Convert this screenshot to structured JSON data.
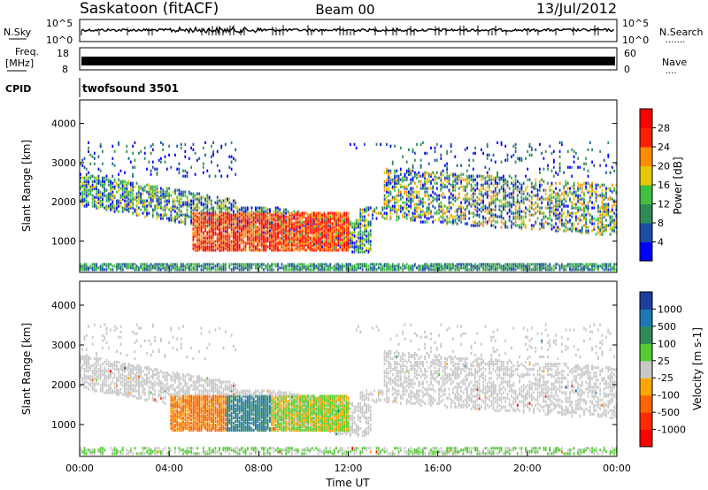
{
  "header": {
    "station": "Saskatoon (fitACF)",
    "beam": "Beam 00",
    "date": "13/Jul/2012"
  },
  "top_panels": {
    "nsky_label": "N.Sky",
    "nsky_top_tick": "10^5",
    "nsky_bottom_tick": "10^0",
    "nsearch_label": "N.Search",
    "nsearch_dots": ".......",
    "freq_label": "Freq.",
    "freq_unit": "[MHz]",
    "freq_ticks": [
      "18",
      "8"
    ],
    "nave_ticks": [
      "60",
      "0"
    ],
    "nave_label": "Nave",
    "nave_dots": "....",
    "cpid_label": "CPID",
    "cpid_value": "twofsound 3501"
  },
  "chart_data": [
    {
      "type": "heatmap",
      "ylabel": "Slant Range [km]",
      "ylim": [
        200,
        4600
      ],
      "yticks": [
        "1000",
        "2000",
        "3000",
        "4000"
      ],
      "xlim": [
        "00:00",
        "24:00"
      ],
      "colorbar": {
        "label": "Power [dB]",
        "ticks": [
          "4",
          "8",
          "12",
          "16",
          "20",
          "24",
          "28"
        ],
        "colors": [
          "#0000ff",
          "#1b4fa6",
          "#2e8b57",
          "#40bf40",
          "#e6c800",
          "#ff8c00",
          "#ff2000",
          "#ff0000"
        ]
      }
    },
    {
      "type": "heatmap",
      "ylabel": "Slant Range [km]",
      "xlabel": "Time UT",
      "ylim": [
        200,
        4600
      ],
      "yticks": [
        "1000",
        "2000",
        "3000",
        "4000"
      ],
      "xticks": [
        "00:00",
        "04:00",
        "08:00",
        "12:00",
        "16:00",
        "20:00",
        "00:00"
      ],
      "colorbar": {
        "label": "Velocity [m s-1]",
        "ticks": [
          "1000",
          "500",
          "100",
          "25",
          "-25",
          "-100",
          "-500",
          "-1000"
        ],
        "colors": [
          "#1f3fa0",
          "#1e78b4",
          "#2e8b57",
          "#55cc33",
          "#c8c8c8",
          "#ffa500",
          "#ff6600",
          "#ff2a00",
          "#ff0000"
        ]
      }
    }
  ]
}
